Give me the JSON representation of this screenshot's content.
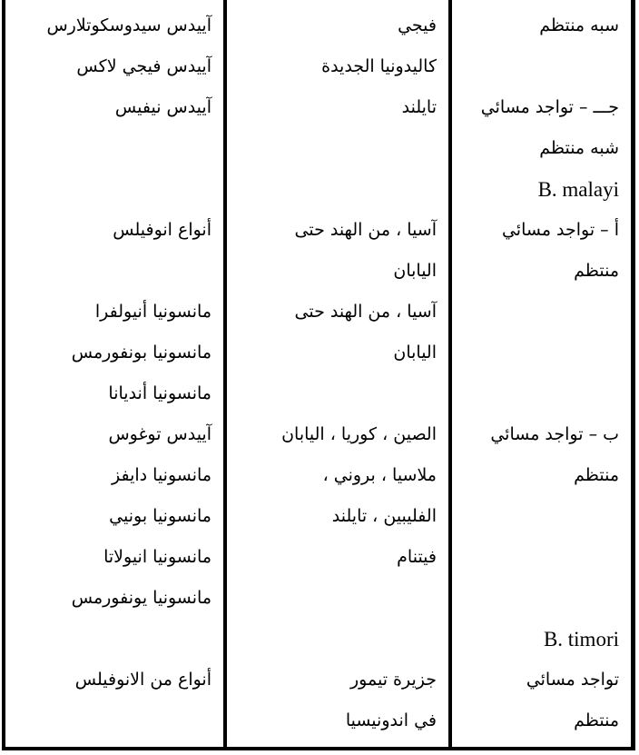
{
  "document": {
    "kind": "scanned-table-page",
    "language": "Arabic (RTL) with Latin species names",
    "colors": {
      "background": "#ffffff",
      "text": "#000000",
      "rule": "#000000"
    }
  },
  "table": {
    "columns": [
      {
        "name": "periodicity-and-species",
        "rows": [
          "سبه منتظم",
          "",
          "جـــ – تواجد مسائي",
          "شبه منتظم",
          "B. malayi",
          "أ – تواجد مسائي",
          "منتظم",
          "",
          "",
          "",
          "ب – تواجد مسائي",
          "منتظم",
          "",
          "",
          "",
          "B. timori",
          "تواجد مسائي",
          "منتظم"
        ]
      },
      {
        "name": "geographic-distribution",
        "rows": [
          "فيجي",
          "كاليدونيا الجديدة",
          "تايلند",
          "",
          "",
          "آسيا ، من الهند حتى",
          "اليابان",
          "آسيا ، من الهند حتى",
          "اليابان",
          "",
          "الصين ، كوريا ، اليابان",
          "ملاسيا ، بروني ،",
          "الفليبين ، تايلند",
          "فيتنام",
          "",
          "",
          "جزيرة تيمور",
          "في اندونيسيا"
        ]
      },
      {
        "name": "vector-species",
        "rows": [
          "آييدس سيدوسكوتلارس",
          "آييدس فيجي لاكس",
          "آييدس نيفيس",
          "",
          "",
          "أنواع انوفيلس",
          "",
          "مانسونيا أنيولفرا",
          "مانسونيا بونفورمس",
          "مانسونيا أنديانا",
          "آييدس توغوس",
          "مانسونيا دايفز",
          "مانسونيا بونيي",
          "مانسونيا انيولاتا",
          "مانسونيا يونفورمس",
          "",
          "أنواع من الانوفيلس",
          ""
        ]
      }
    ]
  }
}
